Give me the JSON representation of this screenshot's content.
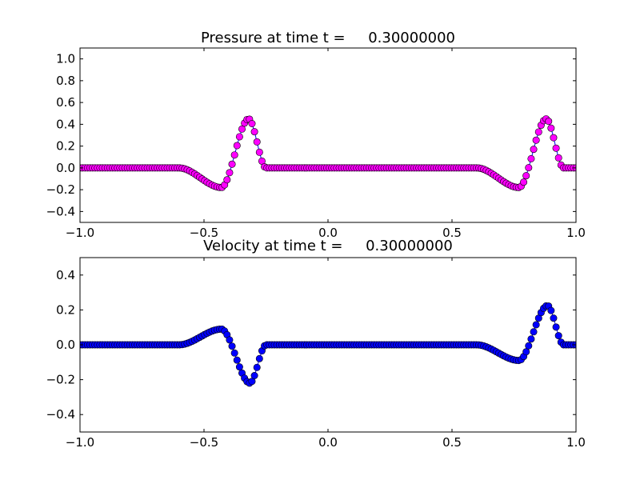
{
  "figure": {
    "background": "#ffffff"
  },
  "chart_data": [
    {
      "type": "line",
      "title": "Pressure at time t =     0.30000000",
      "xlabel": "",
      "ylabel": "",
      "xlim": [
        -1.0,
        1.0
      ],
      "ylim": [
        -0.5,
        1.1
      ],
      "xticks": [
        -1.0,
        -0.5,
        0.0,
        0.5,
        1.0
      ],
      "xtick_labels": [
        "−1.0",
        "−0.5",
        "0.0",
        "0.5",
        "1.0"
      ],
      "yticks": [
        -0.4,
        -0.2,
        0.0,
        0.2,
        0.4,
        0.6,
        0.8,
        1.0
      ],
      "ytick_labels": [
        "−0.4",
        "−0.2",
        "0.0",
        "0.2",
        "0.4",
        "0.6",
        "0.8",
        "1.0"
      ],
      "grid": false,
      "marker": "circle",
      "marker_color": "#ff00ff",
      "line_color": "#0000ff",
      "x_range": [
        -1.0,
        1.0
      ],
      "n_points": 200,
      "pulses": [
        {
          "a": -0.6,
          "b": -0.25,
          "trough_x": -0.43,
          "trough_y": -0.18,
          "peak_x": -0.32,
          "peak_y": 0.45
        },
        {
          "a": 0.6,
          "b": 0.95,
          "trough_x": 0.77,
          "trough_y": -0.18,
          "peak_x": 0.88,
          "peak_y": 0.45
        }
      ]
    },
    {
      "type": "line",
      "title": "Velocity at time t =     0.30000000",
      "xlabel": "",
      "ylabel": "",
      "xlim": [
        -1.0,
        1.0
      ],
      "ylim": [
        -0.5,
        0.5
      ],
      "xticks": [
        -1.0,
        -0.5,
        0.0,
        0.5,
        1.0
      ],
      "xtick_labels": [
        "−1.0",
        "−0.5",
        "0.0",
        "0.5",
        "1.0"
      ],
      "yticks": [
        -0.4,
        -0.2,
        0.0,
        0.2,
        0.4
      ],
      "ytick_labels": [
        "−0.4",
        "−0.2",
        "0.0",
        "0.2",
        "0.4"
      ],
      "grid": false,
      "marker": "circle",
      "marker_color": "#0000ff",
      "line_color": "#0000ff",
      "x_range": [
        -1.0,
        1.0
      ],
      "n_points": 200,
      "pulses": [
        {
          "a": -0.6,
          "b": -0.25,
          "trough_x": -0.43,
          "trough_y": 0.09,
          "peak_x": -0.315,
          "peak_y": -0.22
        },
        {
          "a": 0.6,
          "b": 0.95,
          "trough_x": 0.77,
          "trough_y": -0.09,
          "peak_x": 0.885,
          "peak_y": 0.225
        }
      ]
    }
  ]
}
